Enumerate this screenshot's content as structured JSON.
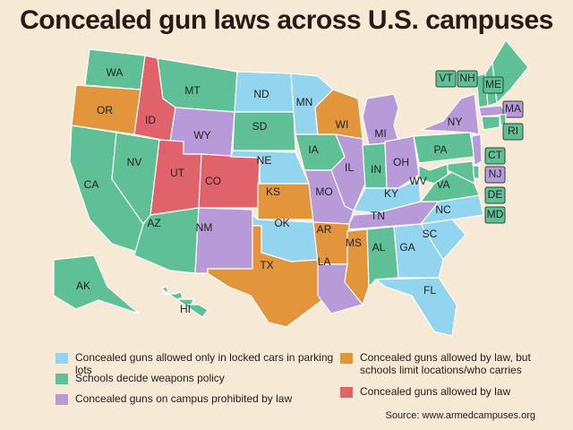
{
  "title": "Concealed gun laws across U.S. campuses",
  "legend": [
    {
      "label": "Concealed guns allowed only in locked cars in parking lots",
      "color": "#93d4ef"
    },
    {
      "label": "Schools decide weapons policy",
      "color": "#5fc096"
    },
    {
      "label": "Concealed guns on campus prohibited by law",
      "color": "#b89ad8"
    },
    {
      "label": "Concealed guns allowed by law, but schools limit locations/who carries",
      "color": "#e3953c"
    },
    {
      "label": "Concealed guns allowed by law",
      "color": "#e0636c"
    }
  ],
  "states": [
    {
      "abbr": "WA",
      "category": 1
    },
    {
      "abbr": "OR",
      "category": 3
    },
    {
      "abbr": "CA",
      "category": 1
    },
    {
      "abbr": "NV",
      "category": 1
    },
    {
      "abbr": "ID",
      "category": 4
    },
    {
      "abbr": "MT",
      "category": 1
    },
    {
      "abbr": "WY",
      "category": 2
    },
    {
      "abbr": "UT",
      "category": 4
    },
    {
      "abbr": "AZ",
      "category": 1
    },
    {
      "abbr": "CO",
      "category": 4
    },
    {
      "abbr": "NM",
      "category": 2
    },
    {
      "abbr": "ND",
      "category": 0
    },
    {
      "abbr": "SD",
      "category": 1
    },
    {
      "abbr": "NE",
      "category": 0
    },
    {
      "abbr": "KS",
      "category": 3
    },
    {
      "abbr": "OK",
      "category": 0
    },
    {
      "abbr": "TX",
      "category": 3
    },
    {
      "abbr": "MN",
      "category": 0
    },
    {
      "abbr": "IA",
      "category": 1
    },
    {
      "abbr": "MO",
      "category": 2
    },
    {
      "abbr": "AR",
      "category": 3
    },
    {
      "abbr": "LA",
      "category": 2
    },
    {
      "abbr": "WI",
      "category": 3
    },
    {
      "abbr": "IL",
      "category": 2
    },
    {
      "abbr": "MI",
      "category": 2
    },
    {
      "abbr": "IN",
      "category": 1
    },
    {
      "abbr": "OH",
      "category": 2
    },
    {
      "abbr": "KY",
      "category": 0
    },
    {
      "abbr": "TN",
      "category": 2
    },
    {
      "abbr": "MS",
      "category": 3
    },
    {
      "abbr": "AL",
      "category": 1
    },
    {
      "abbr": "GA",
      "category": 0
    },
    {
      "abbr": "FL",
      "category": 0
    },
    {
      "abbr": "SC",
      "category": 0
    },
    {
      "abbr": "NC",
      "category": 0
    },
    {
      "abbr": "VA",
      "category": 1
    },
    {
      "abbr": "WV",
      "category": 1
    },
    {
      "abbr": "PA",
      "category": 1
    },
    {
      "abbr": "NY",
      "category": 2
    },
    {
      "abbr": "VT",
      "category": 1
    },
    {
      "abbr": "NH",
      "category": 1
    },
    {
      "abbr": "ME",
      "category": 1
    },
    {
      "abbr": "MA",
      "category": 2
    },
    {
      "abbr": "RI",
      "category": 1
    },
    {
      "abbr": "CT",
      "category": 1
    },
    {
      "abbr": "NJ",
      "category": 2
    },
    {
      "abbr": "DE",
      "category": 1
    },
    {
      "abbr": "MD",
      "category": 1
    },
    {
      "abbr": "AK",
      "category": 1
    },
    {
      "abbr": "HI",
      "category": 1
    }
  ],
  "source": "Source: www.armedcampuses.org"
}
